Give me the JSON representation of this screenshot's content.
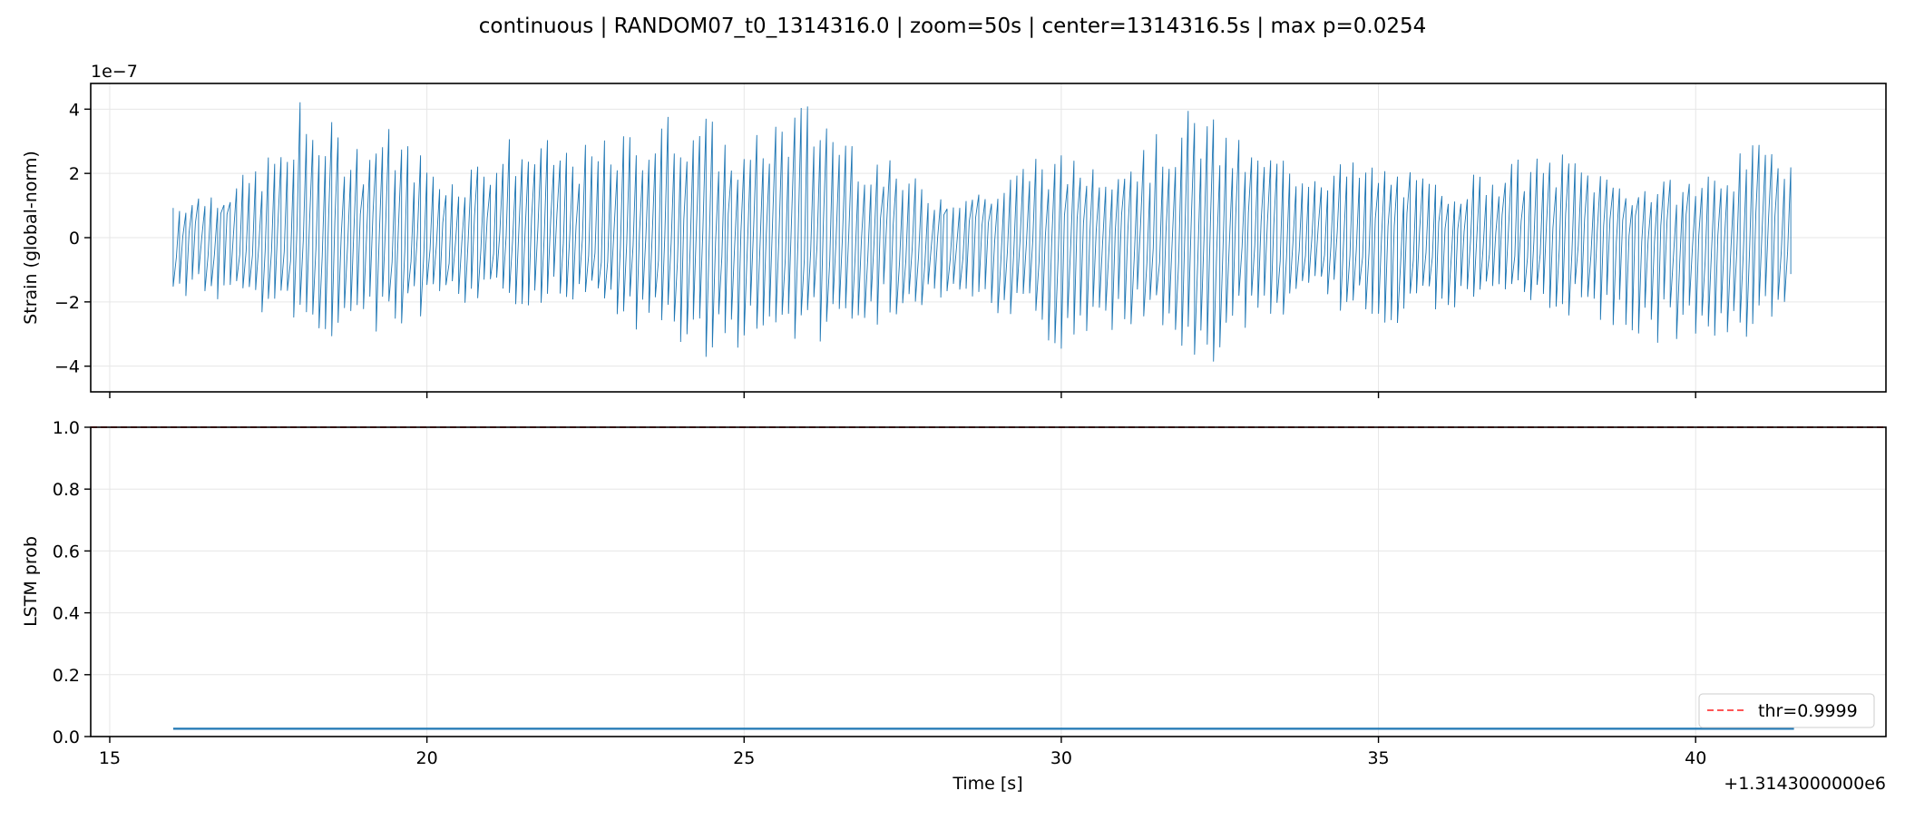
{
  "figure": {
    "title": "continuous | RANDOM07_t0_1314316.0 | zoom=50s | center=1314316.5s | max p=0.0254"
  },
  "chart_data": [
    {
      "type": "line",
      "panel": "top",
      "ylabel": "Strain (global-norm)",
      "y_multiplier_label": "1e−7",
      "xlim": [
        14.7,
        43.0
      ],
      "ylim": [
        -4.8,
        4.8
      ],
      "x_ticks": [
        15,
        20,
        25,
        30,
        35,
        40
      ],
      "y_ticks": [
        -4,
        -2,
        0,
        2,
        4
      ],
      "y_tick_labels": [
        "−4",
        "−2",
        "0",
        "2",
        "4"
      ],
      "grid": true,
      "color": "#1f77b4",
      "series": [
        {
          "x_start": 16.0,
          "x_end": 41.55,
          "x_step": 0.1,
          "y_envelope": [
            [
              16.0,
              1.2
            ],
            [
              17.0,
              1.8
            ],
            [
              17.9,
              3.3
            ],
            [
              18.0,
              4.3
            ],
            [
              19.0,
              3.0
            ],
            [
              19.3,
              3.7
            ],
            [
              20.4,
              2.0
            ],
            [
              21.3,
              3.2
            ],
            [
              22.5,
              2.9
            ],
            [
              23.0,
              3.2
            ],
            [
              24.2,
              4.3
            ],
            [
              25.0,
              2.7
            ],
            [
              25.4,
              3.8
            ],
            [
              25.9,
              4.3
            ],
            [
              26.2,
              4.3
            ],
            [
              27.0,
              2.8
            ],
            [
              28.0,
              1.5
            ],
            [
              29.0,
              1.6
            ],
            [
              29.6,
              2.8
            ],
            [
              30.2,
              2.5
            ],
            [
              31.3,
              2.9
            ],
            [
              32.1,
              4.2
            ],
            [
              33.0,
              2.8
            ],
            [
              34.0,
              2.5
            ],
            [
              35.0,
              2.4
            ],
            [
              36.0,
              1.7
            ],
            [
              37.0,
              2.4
            ],
            [
              38.0,
              2.7
            ],
            [
              39.0,
              1.7
            ],
            [
              40.0,
              1.9
            ],
            [
              41.0,
              3.0
            ],
            [
              41.55,
              3.1
            ]
          ],
          "y_envelope_low": [
            [
              16.0,
              -1.9
            ],
            [
              17.0,
              -2.0
            ],
            [
              17.9,
              -2.9
            ],
            [
              18.2,
              -3.2
            ],
            [
              19.2,
              -3.1
            ],
            [
              19.5,
              -2.9
            ],
            [
              20.4,
              -2.3
            ],
            [
              21.2,
              -2.2
            ],
            [
              22.5,
              -2.0
            ],
            [
              23.0,
              -2.7
            ],
            [
              24.2,
              -3.9
            ],
            [
              25.0,
              -3.5
            ],
            [
              26.0,
              -3.2
            ],
            [
              26.6,
              -3.4
            ],
            [
              27.3,
              -2.5
            ],
            [
              28.5,
              -2.3
            ],
            [
              29.0,
              -2.5
            ],
            [
              30.0,
              -3.8
            ],
            [
              30.6,
              -2.9
            ],
            [
              31.3,
              -2.9
            ],
            [
              32.1,
              -4.2
            ],
            [
              32.5,
              -4.0
            ],
            [
              33.0,
              -2.8
            ],
            [
              34.0,
              -2.0
            ],
            [
              35.0,
              -2.8
            ],
            [
              36.0,
              -2.4
            ],
            [
              37.0,
              -2.2
            ],
            [
              38.0,
              -2.5
            ],
            [
              39.0,
              -3.2
            ],
            [
              40.0,
              -3.6
            ],
            [
              41.0,
              -3.5
            ],
            [
              41.55,
              -1.6
            ]
          ]
        }
      ]
    },
    {
      "type": "line",
      "panel": "bottom",
      "xlabel": "Time [s]",
      "ylabel": "LSTM prob",
      "x_offset_label": "+1.3143000000e6",
      "xlim": [
        14.7,
        43.0
      ],
      "ylim": [
        0.0,
        1.0
      ],
      "x_ticks": [
        15,
        20,
        25,
        30,
        35,
        40
      ],
      "y_ticks": [
        0.0,
        0.2,
        0.4,
        0.6,
        0.8,
        1.0
      ],
      "y_tick_labels": [
        "0.0",
        "0.2",
        "0.4",
        "0.6",
        "0.8",
        "1.0"
      ],
      "grid": true,
      "series": [
        {
          "x": [
            16.0,
            41.55
          ],
          "y": [
            0.0254,
            0.0254
          ],
          "color": "#1f77b4"
        }
      ],
      "threshold": {
        "name": "thr=0.9999",
        "value": 0.9999,
        "color": "#ff5555",
        "style": "dashed"
      },
      "legend_position": "lower-right"
    }
  ]
}
